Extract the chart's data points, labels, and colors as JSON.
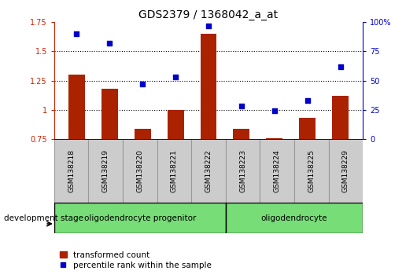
{
  "title": "GDS2379 / 1368042_a_at",
  "samples": [
    "GSM138218",
    "GSM138219",
    "GSM138220",
    "GSM138221",
    "GSM138222",
    "GSM138223",
    "GSM138224",
    "GSM138225",
    "GSM138229"
  ],
  "transformed_count": [
    1.3,
    1.18,
    0.84,
    1.0,
    1.65,
    0.84,
    0.76,
    0.93,
    1.12
  ],
  "percentile_rank": [
    90,
    82,
    47,
    53,
    97,
    28,
    24,
    33,
    62
  ],
  "ylim_left": [
    0.75,
    1.75
  ],
  "ylim_right": [
    0,
    100
  ],
  "yticks_left": [
    0.75,
    1.0,
    1.25,
    1.5,
    1.75
  ],
  "yticks_right": [
    0,
    25,
    50,
    75,
    100
  ],
  "ytick_labels_left": [
    "0.75",
    "1",
    "1.25",
    "1.5",
    "1.75"
  ],
  "ytick_labels_right": [
    "0",
    "25",
    "50",
    "75",
    "100%"
  ],
  "bar_color": "#aa2200",
  "dot_color": "#0000cc",
  "groups": [
    {
      "label": "oligodendrocyte progenitor",
      "start": 0,
      "end": 5,
      "color": "#77dd77"
    },
    {
      "label": "oligodendrocyte",
      "start": 5,
      "end": 9,
      "color": "#77dd77"
    }
  ],
  "dev_stage_label": "development stage",
  "legend_bar_label": "transformed count",
  "legend_dot_label": "percentile rank within the sample",
  "tick_color_left": "#cc2200",
  "tick_color_right": "#0000cc",
  "grid_lines": [
    1.0,
    1.25,
    1.5
  ],
  "gray_color": "#cccccc",
  "cell_border_color": "#999999"
}
